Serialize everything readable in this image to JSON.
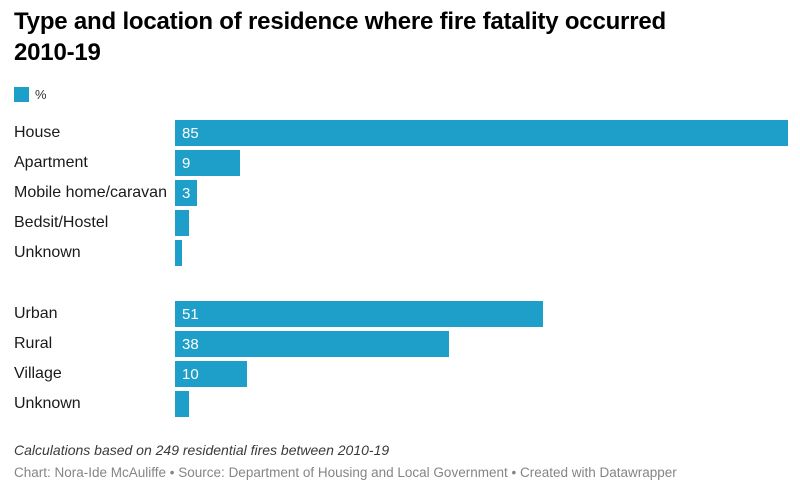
{
  "title_lines": [
    "Type and location of residence where fire fatality occurred",
    "2010-19"
  ],
  "legend": {
    "label": "%",
    "swatch_color": "#1d9fc9"
  },
  "chart_data": {
    "type": "bar",
    "orientation": "horizontal",
    "unit": "%",
    "max_value": 85,
    "bar_color": "#1d9fc9",
    "grid": false,
    "groups": [
      {
        "name": "residence-type",
        "rows": [
          {
            "label": "House",
            "value": 85,
            "value_label": "85"
          },
          {
            "label": "Apartment",
            "value": 9,
            "value_label": "9"
          },
          {
            "label": "Mobile home/caravan",
            "value": 3,
            "value_label": "3"
          },
          {
            "label": "Bedsit/Hostel",
            "value": 2,
            "value_label": ""
          },
          {
            "label": "Unknown",
            "value": 1,
            "value_label": ""
          }
        ]
      },
      {
        "name": "location",
        "rows": [
          {
            "label": "Urban",
            "value": 51,
            "value_label": "51"
          },
          {
            "label": "Rural",
            "value": 38,
            "value_label": "38"
          },
          {
            "label": "Village",
            "value": 10,
            "value_label": "10"
          },
          {
            "label": "Unknown",
            "value": 2,
            "value_label": ""
          }
        ]
      }
    ]
  },
  "footer": {
    "note": "Calculations based on 249 residential fires between 2010-19",
    "credit": "Chart: Nora-Ide McAuliffe • Source: Department of Housing and Local Government • Created with Datawrapper"
  }
}
